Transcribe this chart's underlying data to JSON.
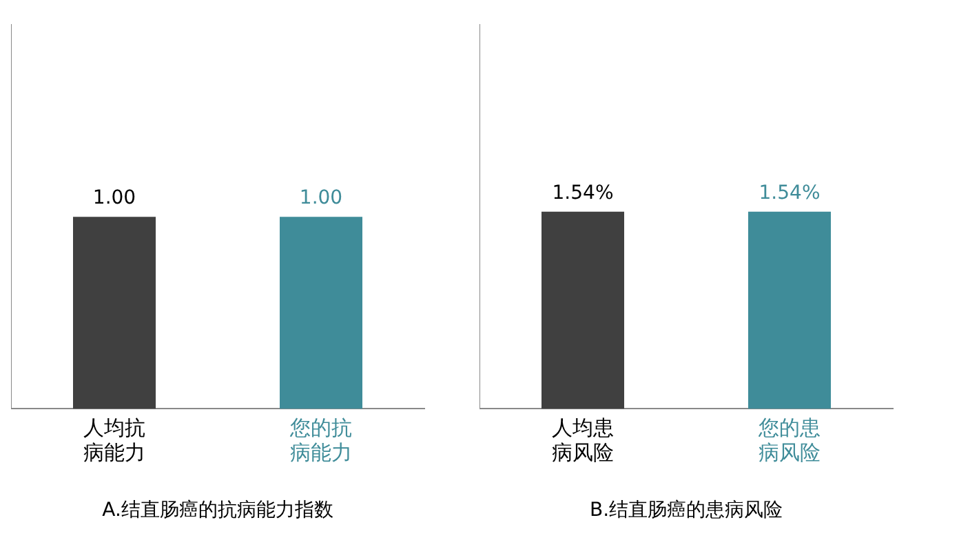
{
  "chart_data": [
    {
      "type": "bar",
      "title": "A.结直肠癌的抗病能力指数",
      "categories": [
        "人均抗病能力",
        "您的抗病能力"
      ],
      "values": [
        1,
        1
      ],
      "colors": [
        "#404040",
        "#3f8c99"
      ],
      "value_labels": [
        "1.00",
        "1.00"
      ],
      "ylim": [
        0,
        2
      ],
      "grid": false,
      "legend": false
    },
    {
      "type": "bar",
      "title": "B.结直肠癌的患病风险",
      "categories": [
        "人均患病风险",
        "您的患病风险"
      ],
      "values": [
        1.54,
        1.54
      ],
      "colors": [
        "#404040",
        "#3f8c99"
      ],
      "value_labels": [
        "1.54%",
        "1.54%"
      ],
      "ylim": [
        0,
        3
      ],
      "grid": false,
      "legend": false
    }
  ]
}
